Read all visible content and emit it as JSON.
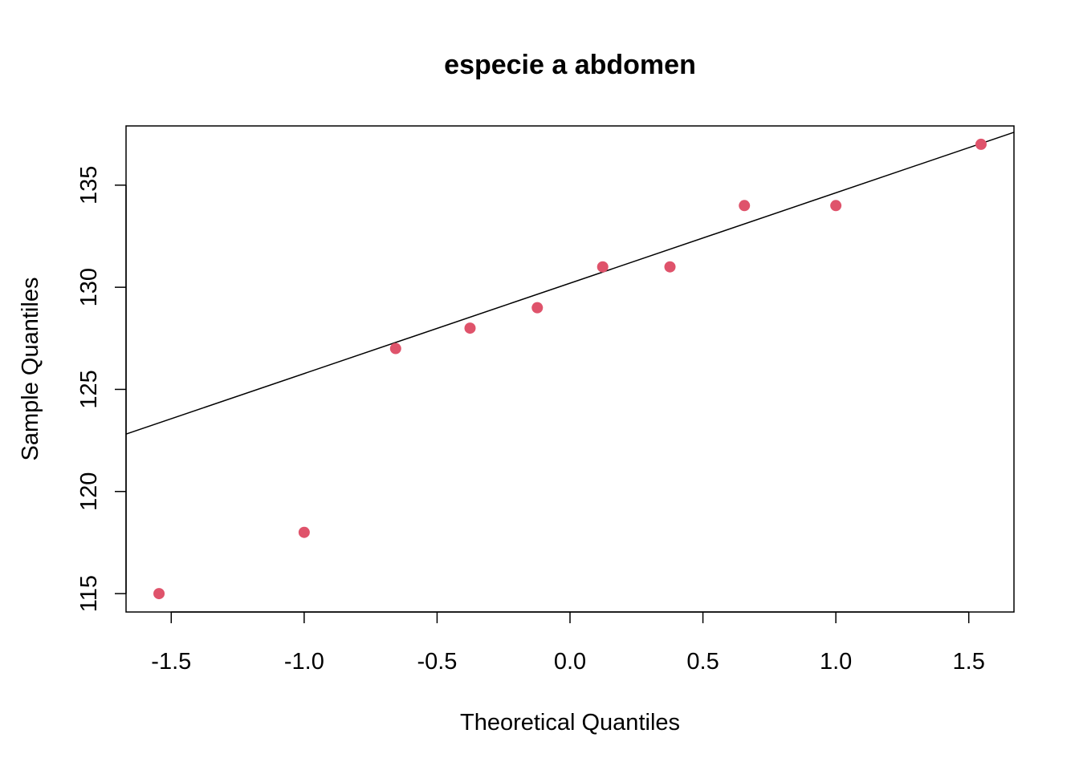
{
  "chart_data": {
    "type": "scatter",
    "title": "especie a abdomen",
    "xlabel": "Theoretical Quantiles",
    "ylabel": "Sample Quantiles",
    "xlim": [
      -1.67,
      1.67
    ],
    "ylim": [
      114.1,
      137.9
    ],
    "x_ticks": [
      -1.5,
      -1.0,
      -0.5,
      0.0,
      0.5,
      1.0,
      1.5
    ],
    "x_tick_labels": [
      "-1.5",
      "-1.0",
      "-0.5",
      "0.0",
      "0.5",
      "1.0",
      "1.5"
    ],
    "y_ticks": [
      115,
      120,
      125,
      130,
      135
    ],
    "y_tick_labels": [
      "115",
      "120",
      "125",
      "130",
      "135"
    ],
    "grid": false,
    "point_color": "#DF536B",
    "line_color": "#000000",
    "points": [
      {
        "x": -1.546,
        "y": 115
      },
      {
        "x": -1.0,
        "y": 118
      },
      {
        "x": -0.656,
        "y": 127
      },
      {
        "x": -0.376,
        "y": 128
      },
      {
        "x": -0.123,
        "y": 129
      },
      {
        "x": 0.123,
        "y": 131
      },
      {
        "x": 0.376,
        "y": 131
      },
      {
        "x": 0.656,
        "y": 134
      },
      {
        "x": 1.0,
        "y": 134
      },
      {
        "x": 1.546,
        "y": 137
      }
    ],
    "reference_line": {
      "intercept": 130.2,
      "slope": 4.425
    }
  }
}
